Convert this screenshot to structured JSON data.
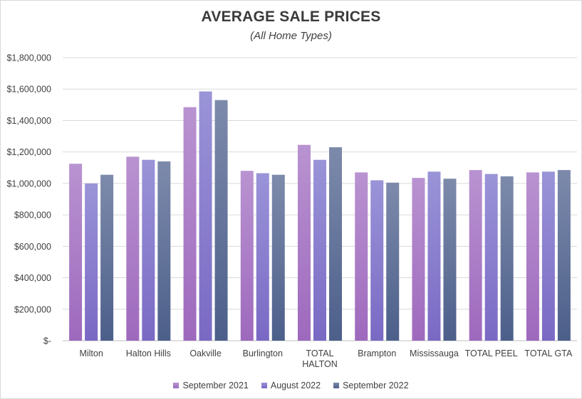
{
  "chart_data": {
    "type": "bar",
    "title": "AVERAGE SALE PRICES",
    "subtitle": "(All Home Types)",
    "xlabel": "",
    "ylabel": "",
    "ylim": [
      0,
      1800000
    ],
    "yticks": [
      {
        "value": 0,
        "label": "$-"
      },
      {
        "value": 200000,
        "label": "$200,000"
      },
      {
        "value": 400000,
        "label": "$400,000"
      },
      {
        "value": 600000,
        "label": "$600,000"
      },
      {
        "value": 800000,
        "label": "$800,000"
      },
      {
        "value": 1000000,
        "label": "$1,000,000"
      },
      {
        "value": 1200000,
        "label": "$1,200,000"
      },
      {
        "value": 1400000,
        "label": "$1,400,000"
      },
      {
        "value": 1600000,
        "label": "$1,600,000"
      },
      {
        "value": 1800000,
        "label": "$1,800,000"
      }
    ],
    "categories": [
      [
        "Milton"
      ],
      [
        "Halton Hills"
      ],
      [
        "Oakville"
      ],
      [
        "Burlington"
      ],
      [
        "TOTAL",
        "HALTON"
      ],
      [
        "Brampton"
      ],
      [
        "Mississauga"
      ],
      [
        "TOTAL PEEL"
      ],
      [
        "TOTAL GTA"
      ]
    ],
    "series": [
      {
        "name": "September 2021",
        "color_top": "#b993d1",
        "color_bottom": "#9e69bd",
        "values": [
          1125000,
          1170000,
          1485000,
          1080000,
          1245000,
          1070000,
          1035000,
          1085000,
          1070000
        ]
      },
      {
        "name": "August 2022",
        "color_top": "#9a94d8",
        "color_bottom": "#7a69c4",
        "values": [
          1000000,
          1150000,
          1585000,
          1065000,
          1150000,
          1020000,
          1075000,
          1060000,
          1075000
        ]
      },
      {
        "name": "September 2022",
        "color_top": "#7d8aab",
        "color_bottom": "#4c5f8a",
        "values": [
          1055000,
          1140000,
          1530000,
          1055000,
          1230000,
          1005000,
          1030000,
          1045000,
          1085000
        ]
      }
    ],
    "grid": true,
    "legend_position": "bottom"
  }
}
